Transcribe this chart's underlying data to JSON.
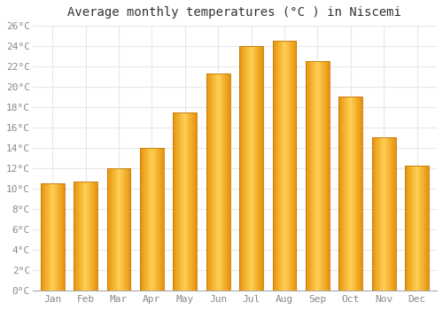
{
  "months": [
    "Jan",
    "Feb",
    "Mar",
    "Apr",
    "May",
    "Jun",
    "Jul",
    "Aug",
    "Sep",
    "Oct",
    "Nov",
    "Dec"
  ],
  "values": [
    10.5,
    10.7,
    12.0,
    14.0,
    17.5,
    21.3,
    24.0,
    24.5,
    22.5,
    19.0,
    15.0,
    12.2
  ],
  "bar_color_left": "#E8920A",
  "bar_color_mid": "#FFD055",
  "bar_color_right": "#E8920A",
  "title": "Average monthly temperatures (°C ) in Niscemi",
  "ylim": [
    0,
    26
  ],
  "ytick_step": 2,
  "background_color": "#ffffff",
  "grid_color": "#e8e8e8",
  "title_fontsize": 10,
  "tick_fontsize": 8,
  "tick_color": "#888888",
  "tick_font_family": "monospace"
}
